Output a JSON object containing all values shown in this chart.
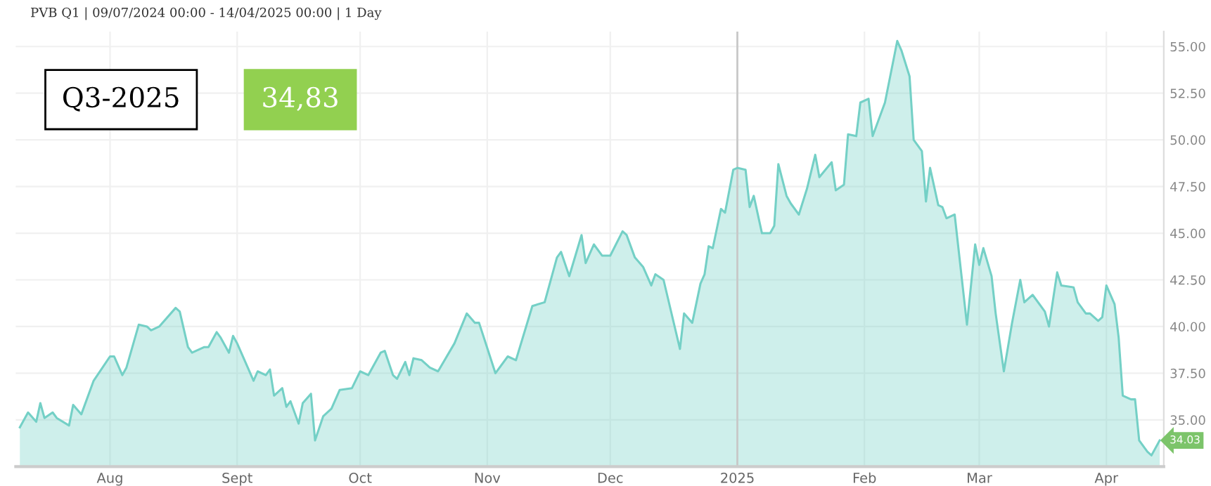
{
  "chart_data": {
    "type": "area",
    "title": "PVB Q1 | 09/07/2024 00:00 - 14/04/2025 00:00 | 1 Day",
    "annotations": [
      "Q3-2025",
      "34,83",
      "34.03"
    ],
    "x": [
      "2024-07-10",
      "2024-07-12",
      "2024-07-14",
      "2024-07-15",
      "2024-07-16",
      "2024-07-18",
      "2024-07-19",
      "2024-07-22",
      "2024-07-23",
      "2024-07-25",
      "2024-07-28",
      "2024-08-01",
      "2024-08-02",
      "2024-08-04",
      "2024-08-05",
      "2024-08-08",
      "2024-08-10",
      "2024-08-11",
      "2024-08-13",
      "2024-08-17",
      "2024-08-18",
      "2024-08-20",
      "2024-08-21",
      "2024-08-24",
      "2024-08-25",
      "2024-08-27",
      "2024-08-28",
      "2024-08-30",
      "2024-08-31",
      "2024-09-01",
      "2024-09-05",
      "2024-09-06",
      "2024-09-08",
      "2024-09-09",
      "2024-09-10",
      "2024-09-12",
      "2024-09-13",
      "2024-09-14",
      "2024-09-16",
      "2024-09-17",
      "2024-09-19",
      "2024-09-20",
      "2024-09-22",
      "2024-09-24",
      "2024-09-26",
      "2024-09-29",
      "2024-10-01",
      "2024-10-03",
      "2024-10-06",
      "2024-10-07",
      "2024-10-09",
      "2024-10-10",
      "2024-10-12",
      "2024-10-13",
      "2024-10-14",
      "2024-10-16",
      "2024-10-18",
      "2024-10-20",
      "2024-10-24",
      "2024-10-27",
      "2024-10-29",
      "2024-10-30",
      "2024-11-03",
      "2024-11-06",
      "2024-11-08",
      "2024-11-12",
      "2024-11-15",
      "2024-11-18",
      "2024-11-19",
      "2024-11-21",
      "2024-11-24",
      "2024-11-25",
      "2024-11-27",
      "2024-11-29",
      "2024-12-01",
      "2024-12-04",
      "2024-12-05",
      "2024-12-07",
      "2024-12-09",
      "2024-12-11",
      "2024-12-12",
      "2024-12-14",
      "2024-12-18",
      "2024-12-19",
      "2024-12-21",
      "2024-12-23",
      "2024-12-24",
      "2024-12-25",
      "2024-12-26",
      "2024-12-28",
      "2024-12-29",
      "2024-12-31",
      "2025-01-01",
      "2025-01-03",
      "2025-01-04",
      "2025-01-05",
      "2025-01-07",
      "2025-01-09",
      "2025-01-10",
      "2025-01-11",
      "2025-01-13",
      "2025-01-14",
      "2025-01-16",
      "2025-01-18",
      "2025-01-20",
      "2025-01-21",
      "2025-01-24",
      "2025-01-25",
      "2025-01-27",
      "2025-01-28",
      "2025-01-30",
      "2025-01-31",
      "2025-02-02",
      "2025-02-03",
      "2025-02-06",
      "2025-02-09",
      "2025-02-10",
      "2025-02-12",
      "2025-02-13",
      "2025-02-15",
      "2025-02-16",
      "2025-02-17",
      "2025-02-19",
      "2025-02-20",
      "2025-02-21",
      "2025-02-23",
      "2025-02-26",
      "2025-02-28",
      "2025-03-01",
      "2025-03-02",
      "2025-03-04",
      "2025-03-05",
      "2025-03-07",
      "2025-03-09",
      "2025-03-11",
      "2025-03-12",
      "2025-03-14",
      "2025-03-17",
      "2025-03-18",
      "2025-03-20",
      "2025-03-21",
      "2025-03-24",
      "2025-03-25",
      "2025-03-27",
      "2025-03-28",
      "2025-03-30",
      "2025-03-31",
      "2025-04-01",
      "2025-04-03",
      "2025-04-04",
      "2025-04-05",
      "2025-04-07",
      "2025-04-08",
      "2025-04-09",
      "2025-04-11",
      "2025-04-12",
      "2025-04-14"
    ],
    "series": [
      {
        "color": "#74d0c6",
        "values": [
          34.6,
          35.4,
          34.9,
          35.9,
          35.1,
          35.4,
          35.1,
          34.7,
          35.8,
          35.3,
          37.1,
          38.4,
          38.4,
          37.4,
          37.8,
          40.1,
          40.0,
          39.8,
          40.0,
          41.0,
          40.8,
          38.9,
          38.6,
          38.9,
          38.9,
          39.7,
          39.4,
          38.6,
          39.5,
          39.1,
          37.1,
          37.6,
          37.4,
          37.7,
          36.3,
          36.7,
          35.7,
          36.0,
          34.8,
          35.9,
          36.4,
          33.9,
          35.2,
          35.6,
          36.6,
          36.7,
          37.6,
          37.4,
          38.6,
          38.7,
          37.4,
          37.2,
          38.1,
          37.4,
          38.3,
          38.2,
          37.8,
          37.6,
          39.1,
          40.7,
          40.2,
          40.2,
          37.5,
          38.4,
          38.2,
          41.1,
          41.3,
          43.7,
          44.0,
          42.7,
          44.9,
          43.4,
          44.4,
          43.8,
          43.8,
          45.1,
          44.9,
          43.7,
          43.2,
          42.2,
          42.8,
          42.5,
          38.8,
          40.7,
          40.2,
          42.3,
          42.8,
          44.3,
          44.2,
          46.3,
          46.1,
          48.4,
          48.5,
          48.4,
          46.4,
          47.0,
          45.0,
          45.0,
          45.4,
          48.7,
          47.0,
          46.6,
          46.0,
          47.4,
          49.2,
          48.0,
          48.8,
          47.3,
          47.6,
          50.3,
          50.2,
          52.0,
          52.2,
          50.2,
          52.0,
          55.3,
          54.8,
          53.4,
          50.0,
          49.4,
          46.7,
          48.5,
          46.5,
          46.4,
          45.8,
          46.0,
          40.1,
          44.4,
          43.3,
          44.2,
          42.7,
          40.7,
          37.6,
          40.2,
          42.5,
          41.3,
          41.7,
          40.8,
          40.0,
          42.9,
          42.2,
          42.1,
          41.3,
          40.7,
          40.7,
          40.3,
          40.5,
          42.2,
          41.2,
          39.4,
          36.3,
          36.1,
          36.1,
          33.9,
          33.3,
          33.1,
          33.9
        ]
      }
    ],
    "xlim": [
      "2024-07-09",
      "2025-04-15"
    ],
    "xticks": [
      {
        "value": "2024-08-01",
        "label": "Aug"
      },
      {
        "value": "2024-09-01",
        "label": "Sept"
      },
      {
        "value": "2024-10-01",
        "label": "Oct"
      },
      {
        "value": "2024-11-01",
        "label": "Nov"
      },
      {
        "value": "2024-12-01",
        "label": "Dec"
      },
      {
        "value": "2025-01-01",
        "label": "2025"
      },
      {
        "value": "2025-02-01",
        "label": "Feb"
      },
      {
        "value": "2025-03-01",
        "label": "Mar"
      },
      {
        "value": "2025-04-01",
        "label": "Apr"
      }
    ],
    "ylim": [
      32.5,
      55.8
    ],
    "yticks": [
      {
        "value": 35,
        "label": "35.00"
      },
      {
        "value": 37.5,
        "label": "37.50"
      },
      {
        "value": 40,
        "label": "40.00"
      },
      {
        "value": 42.5,
        "label": "42.50"
      },
      {
        "value": 45,
        "label": "45.00"
      },
      {
        "value": 47.5,
        "label": "47.50"
      },
      {
        "value": 50,
        "label": "50.00"
      },
      {
        "value": 52.5,
        "label": "52.50"
      },
      {
        "value": 55,
        "label": "55.00"
      }
    ],
    "ref_lines": [
      {
        "axis": "x",
        "value": "2025-01-01",
        "color": "#c8c8c8"
      }
    ],
    "grid": true,
    "legend": false
  }
}
